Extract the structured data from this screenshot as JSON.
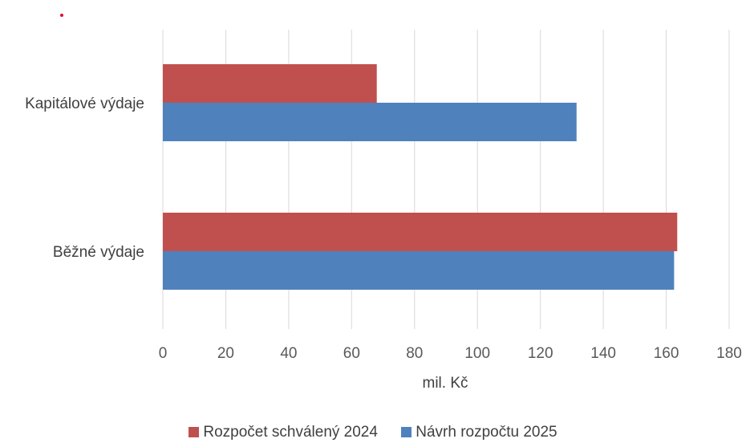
{
  "chart_data": {
    "type": "bar",
    "orientation": "horizontal",
    "categories": [
      "Kapitálové výdaje",
      "Běžné výdaje"
    ],
    "series": [
      {
        "name": "Rozpočet schválený 2024",
        "values": [
          68,
          163.5
        ],
        "color": "#c0504d"
      },
      {
        "name": "Návrh rozpočtu 2025",
        "values": [
          131.5,
          162.5
        ],
        "color": "#4f81bd"
      }
    ],
    "xlabel": "mil. Kč",
    "xlim": [
      0,
      180
    ],
    "xticks": [
      0,
      20,
      40,
      60,
      80,
      100,
      120,
      140,
      160,
      180
    ],
    "grid": true,
    "legend_position": "bottom"
  }
}
